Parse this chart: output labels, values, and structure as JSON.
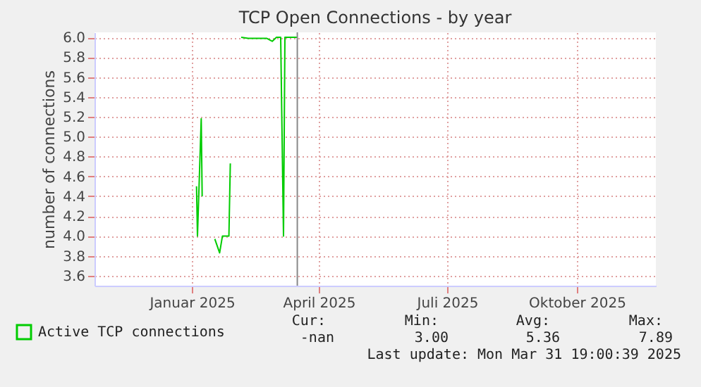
{
  "chart_data": {
    "type": "line",
    "title": "TCP Open Connections - by year",
    "ylabel": "number of connections",
    "xlim": [
      "2024-11-08",
      "2025-12-11"
    ],
    "xticks": [
      {
        "value": "2025-01-16",
        "label": "Januar 2025"
      },
      {
        "value": "2025-04-16",
        "label": "April 2025"
      },
      {
        "value": "2025-07-16",
        "label": "Juli 2025"
      },
      {
        "value": "2025-10-16",
        "label": "Oktober 2025"
      }
    ],
    "ylim": [
      3.5,
      6.05
    ],
    "yticks": [
      {
        "value": 3.6,
        "label": "3.6"
      },
      {
        "value": 3.8,
        "label": "3.8"
      },
      {
        "value": 4.0,
        "label": "4.0"
      },
      {
        "value": 4.2,
        "label": "4.2"
      },
      {
        "value": 4.4,
        "label": "4.4"
      },
      {
        "value": 4.6,
        "label": "4.6"
      },
      {
        "value": 4.8,
        "label": "4.8"
      },
      {
        "value": 5.0,
        "label": "5.0"
      },
      {
        "value": 5.2,
        "label": "5.2"
      },
      {
        "value": 5.4,
        "label": "5.4"
      },
      {
        "value": 5.6,
        "label": "5.6"
      },
      {
        "value": 5.8,
        "label": "5.8"
      },
      {
        "value": 6.0,
        "label": "6.0"
      }
    ],
    "grid": true,
    "legend": "bottom",
    "marker": "none",
    "line_style": "solid",
    "series": [
      {
        "name": "Active TCP connections",
        "color": "#00cc00",
        "x": [
          "2025-01-19T08:00",
          "2025-01-20T00:00",
          "2025-01-22T16:00",
          "2025-01-23T08:00",
          "2025-01-27T00:00",
          "2025-02-01T07:00",
          "2025-02-04T17:00",
          "2025-02-06T17:00",
          "2025-02-11T07:00",
          "2025-02-12T07:00",
          "2025-02-15T00:00",
          "2025-02-20T00:00",
          "2025-02-25T00:00",
          "2025-03-10T00:00",
          "2025-03-14T00:00",
          "2025-03-17T00:00",
          "2025-03-20T00:00",
          "2025-03-22T00:00",
          "2025-03-23T00:00",
          "2025-03-31T19:00"
        ],
        "values": [
          4.5,
          4.0,
          5.18,
          4.4,
          null,
          3.97,
          3.83,
          4.0,
          4.0,
          4.73,
          null,
          6.0,
          5.99,
          5.99,
          5.96,
          6.0,
          6.0,
          4.0,
          6.0,
          6.0
        ]
      }
    ],
    "ref_lines": [
      {
        "axis": "x",
        "value": "2025-03-31T19:00",
        "color": "#888888"
      }
    ],
    "annotations": [
      "Cur:",
      "Min:",
      "Avg:",
      "Max:",
      "-nan",
      "3.00",
      "5.36",
      "7.89",
      "Last update: Mon Mar 31 19:00:39 2025"
    ]
  }
}
